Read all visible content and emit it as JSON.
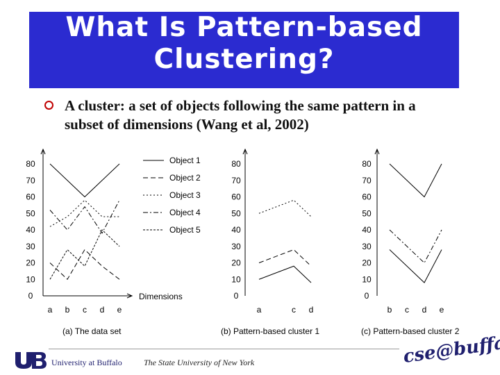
{
  "slide": {
    "title_line1": "What Is Pattern-based",
    "title_line2": "Clustering?",
    "title_bg": "#2b2bd0",
    "bullet_color": "#c00000",
    "bullet_text": "A cluster: a set of objects following the same pattern in a subset of dimensions (Wang et al, 2002)"
  },
  "footer": {
    "university": "University at Buffalo",
    "state_university": "The State University of New York",
    "cse_logo": "cse@buffalo",
    "ub_logo_icon": "ub-logo-icon"
  },
  "chart_data": [
    {
      "type": "line",
      "title": "(a) The data set",
      "xlabel": "Dimensions",
      "ylabel": "",
      "categories": [
        "a",
        "b",
        "c",
        "d",
        "e"
      ],
      "ylim": [
        0,
        80
      ],
      "yticks": [
        "0",
        "10",
        "20",
        "30",
        "40",
        "50",
        "60",
        "70",
        "80"
      ],
      "legend_position": "top-right",
      "series": [
        {
          "name": "Object 1",
          "values": [
            80,
            70,
            60,
            70,
            80
          ]
        },
        {
          "name": "Object 2",
          "values": [
            20,
            10,
            28,
            18,
            10
          ]
        },
        {
          "name": "Object 3",
          "values": [
            42,
            48,
            58,
            48,
            48
          ]
        },
        {
          "name": "Object 4",
          "values": [
            52,
            40,
            54,
            38,
            58
          ]
        },
        {
          "name": "Object 5",
          "values": [
            10,
            28,
            18,
            40,
            30
          ]
        }
      ]
    },
    {
      "type": "line",
      "title": "(b) Pattern-based cluster 1",
      "categories": [
        "a",
        "c",
        "d"
      ],
      "ylim": [
        0,
        80
      ],
      "yticks": [
        "0",
        "10",
        "20",
        "30",
        "40",
        "50",
        "60",
        "70",
        "80"
      ],
      "series": [
        {
          "values": [
            50,
            58,
            48
          ]
        },
        {
          "values": [
            20,
            28,
            18
          ]
        },
        {
          "values": [
            10,
            18,
            8
          ]
        }
      ]
    },
    {
      "type": "line",
      "title": "(c) Pattern-based cluster 2",
      "categories": [
        "b",
        "c",
        "d",
        "e"
      ],
      "ylim": [
        0,
        80
      ],
      "yticks": [
        "0",
        "10",
        "20",
        "30",
        "40",
        "50",
        "60",
        "70",
        "80"
      ],
      "series": [
        {
          "values": [
            80,
            70,
            60,
            80
          ]
        },
        {
          "values": [
            40,
            30,
            20,
            40
          ]
        },
        {
          "values": [
            28,
            18,
            8,
            28
          ]
        }
      ]
    }
  ]
}
